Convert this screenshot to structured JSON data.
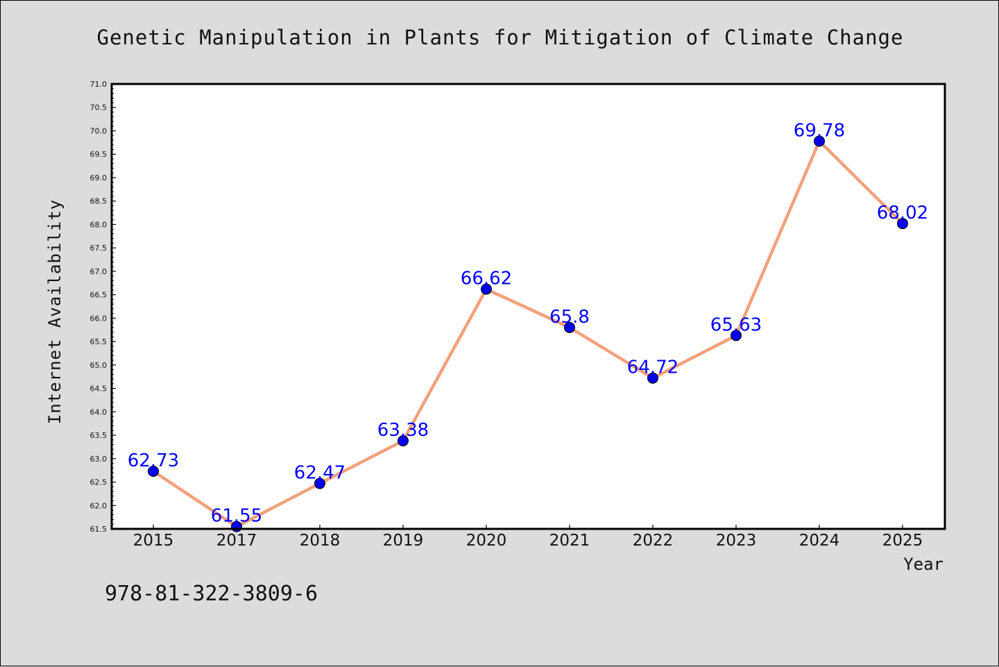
{
  "chart_data": {
    "type": "line",
    "title": "Genetic Manipulation in Plants for Mitigation of Climate Change",
    "xlabel": "Year",
    "ylabel": "Internet Availability",
    "categories": [
      "2015",
      "2017",
      "2018",
      "2019",
      "2020",
      "2021",
      "2022",
      "2023",
      "2024",
      "2025"
    ],
    "series": [
      {
        "values": [
          62.73,
          61.55,
          62.47,
          63.38,
          66.62,
          65.8,
          64.72,
          65.63,
          69.78,
          68.02
        ],
        "data_labels": [
          "62.73",
          "61.55",
          "62.47",
          "63.38",
          "66.62",
          "65.8",
          "64.72",
          "65.63",
          "69.78",
          "68.02"
        ]
      }
    ],
    "ylim": [
      61.5,
      71.0
    ],
    "yticks": [
      "61.5",
      "62.0",
      "62.5",
      "63.0",
      "63.5",
      "64.0",
      "64.5",
      "65.0",
      "65.5",
      "66.0",
      "66.5",
      "67.0",
      "67.5",
      "68.0",
      "68.5",
      "69.0",
      "69.5",
      "70.0",
      "70.5",
      "71.0"
    ],
    "grid": false,
    "colors": {
      "line": "#f4a07a",
      "marker": "#0000ee",
      "label": "#0000ff"
    }
  },
  "footer": {
    "isbn": "978-81-322-3809-6"
  }
}
